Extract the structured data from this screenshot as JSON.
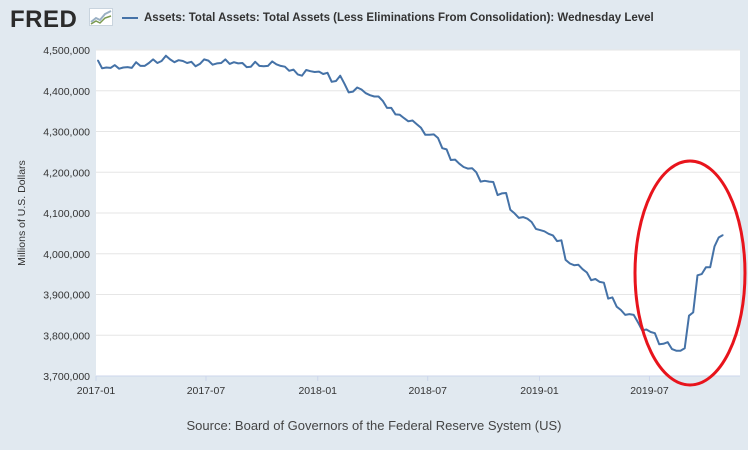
{
  "header": {
    "logo_text": "FRED",
    "legend_label": "Assets: Total Assets: Total Assets (Less Eliminations From Consolidation): Wednesday Level"
  },
  "source": "Source: Board of Governors of the Federal Reserve System (US)",
  "colors": {
    "series": "#4572a7",
    "plot_bg": "#ffffff",
    "page_bg": "#e1e9f0",
    "annotation": "#e8141c",
    "grid": "#e6e6e6"
  },
  "chart_data": {
    "type": "line",
    "ylabel": "Millions of U.S. Dollars",
    "xlabel": "",
    "xlim": [
      "2017-01-01",
      "2019-11-27"
    ],
    "ylim": [
      3700000,
      4500000
    ],
    "yticks": [
      3700000,
      3800000,
      3900000,
      4000000,
      4100000,
      4200000,
      4300000,
      4400000,
      4500000
    ],
    "ytick_labels": [
      "3,700,000",
      "3,800,000",
      "3,900,000",
      "4,000,000",
      "4,100,000",
      "4,200,000",
      "4,300,000",
      "4,400,000",
      "4,500,000"
    ],
    "xticks": [
      "2017-01-01",
      "2017-07-01",
      "2018-01-01",
      "2018-07-01",
      "2019-01-01",
      "2019-07-01"
    ],
    "xtick_labels": [
      "2017-01",
      "2017-07",
      "2018-01",
      "2018-07",
      "2019-01",
      "2019-07"
    ],
    "grid": "horizontal",
    "legend": "top",
    "annotation": "red ellipse around the late-2019 rise",
    "series": [
      {
        "name": "Assets: Total Assets: Total Assets (Less Eliminations From Consolidation): Wednesday Level",
        "points": [
          [
            "2017-01-04",
            4475000
          ],
          [
            "2017-01-11",
            4455000
          ],
          [
            "2017-01-18",
            4457000
          ],
          [
            "2017-01-25",
            4456000
          ],
          [
            "2017-02-01",
            4463000
          ],
          [
            "2017-02-08",
            4454000
          ],
          [
            "2017-02-15",
            4457000
          ],
          [
            "2017-02-22",
            4458000
          ],
          [
            "2017-03-01",
            4456000
          ],
          [
            "2017-03-08",
            4470000
          ],
          [
            "2017-03-15",
            4461000
          ],
          [
            "2017-03-22",
            4461000
          ],
          [
            "2017-03-29",
            4468000
          ],
          [
            "2017-04-05",
            4477000
          ],
          [
            "2017-04-12",
            4468000
          ],
          [
            "2017-04-19",
            4473000
          ],
          [
            "2017-04-26",
            4486000
          ],
          [
            "2017-05-03",
            4477000
          ],
          [
            "2017-05-10",
            4470000
          ],
          [
            "2017-05-17",
            4475000
          ],
          [
            "2017-05-24",
            4473000
          ],
          [
            "2017-05-31",
            4468000
          ],
          [
            "2017-06-07",
            4471000
          ],
          [
            "2017-06-14",
            4460000
          ],
          [
            "2017-06-21",
            4466000
          ],
          [
            "2017-06-28",
            4477000
          ],
          [
            "2017-07-05",
            4474000
          ],
          [
            "2017-07-12",
            4464000
          ],
          [
            "2017-07-19",
            4467000
          ],
          [
            "2017-07-26",
            4468000
          ],
          [
            "2017-08-02",
            4477000
          ],
          [
            "2017-08-09",
            4466000
          ],
          [
            "2017-08-16",
            4470000
          ],
          [
            "2017-08-23",
            4467000
          ],
          [
            "2017-08-30",
            4468000
          ],
          [
            "2017-09-06",
            4458000
          ],
          [
            "2017-09-13",
            4459000
          ],
          [
            "2017-09-20",
            4471000
          ],
          [
            "2017-09-27",
            4461000
          ],
          [
            "2017-10-04",
            4460000
          ],
          [
            "2017-10-11",
            4461000
          ],
          [
            "2017-10-18",
            4472000
          ],
          [
            "2017-10-25",
            4465000
          ],
          [
            "2017-11-01",
            4461000
          ],
          [
            "2017-11-08",
            4459000
          ],
          [
            "2017-11-15",
            4449000
          ],
          [
            "2017-11-22",
            4452000
          ],
          [
            "2017-11-29",
            4440000
          ],
          [
            "2017-12-06",
            4437000
          ],
          [
            "2017-12-13",
            4451000
          ],
          [
            "2017-12-20",
            4448000
          ],
          [
            "2017-12-27",
            4446000
          ],
          [
            "2018-01-03",
            4447000
          ],
          [
            "2018-01-10",
            4441000
          ],
          [
            "2018-01-17",
            4444000
          ],
          [
            "2018-01-24",
            4422000
          ],
          [
            "2018-01-31",
            4424000
          ],
          [
            "2018-02-07",
            4437000
          ],
          [
            "2018-02-14",
            4417000
          ],
          [
            "2018-02-21",
            4396000
          ],
          [
            "2018-02-28",
            4398000
          ],
          [
            "2018-03-07",
            4408000
          ],
          [
            "2018-03-14",
            4403000
          ],
          [
            "2018-03-21",
            4394000
          ],
          [
            "2018-03-28",
            4389000
          ],
          [
            "2018-04-04",
            4386000
          ],
          [
            "2018-04-11",
            4386000
          ],
          [
            "2018-04-18",
            4375000
          ],
          [
            "2018-04-25",
            4358000
          ],
          [
            "2018-05-02",
            4358000
          ],
          [
            "2018-05-09",
            4342000
          ],
          [
            "2018-05-16",
            4341000
          ],
          [
            "2018-05-23",
            4333000
          ],
          [
            "2018-05-30",
            4325000
          ],
          [
            "2018-06-06",
            4327000
          ],
          [
            "2018-06-13",
            4318000
          ],
          [
            "2018-06-20",
            4309000
          ],
          [
            "2018-06-27",
            4292000
          ],
          [
            "2018-07-04",
            4292000
          ],
          [
            "2018-07-11",
            4293000
          ],
          [
            "2018-07-18",
            4284000
          ],
          [
            "2018-07-25",
            4259000
          ],
          [
            "2018-08-01",
            4256000
          ],
          [
            "2018-08-08",
            4230000
          ],
          [
            "2018-08-15",
            4231000
          ],
          [
            "2018-08-22",
            4221000
          ],
          [
            "2018-08-29",
            4213000
          ],
          [
            "2018-09-05",
            4209000
          ],
          [
            "2018-09-12",
            4210000
          ],
          [
            "2018-09-19",
            4200000
          ],
          [
            "2018-09-26",
            4177000
          ],
          [
            "2018-10-03",
            4179000
          ],
          [
            "2018-10-10",
            4177000
          ],
          [
            "2018-10-17",
            4176000
          ],
          [
            "2018-10-24",
            4144000
          ],
          [
            "2018-10-31",
            4148000
          ],
          [
            "2018-11-07",
            4149000
          ],
          [
            "2018-11-14",
            4108000
          ],
          [
            "2018-11-21",
            4099000
          ],
          [
            "2018-11-28",
            4088000
          ],
          [
            "2018-12-05",
            4090000
          ],
          [
            "2018-12-12",
            4086000
          ],
          [
            "2018-12-19",
            4078000
          ],
          [
            "2018-12-26",
            4061000
          ],
          [
            "2019-01-02",
            4058000
          ],
          [
            "2019-01-09",
            4055000
          ],
          [
            "2019-01-16",
            4049000
          ],
          [
            "2019-01-23",
            4045000
          ],
          [
            "2019-01-30",
            4031000
          ],
          [
            "2019-02-06",
            4033000
          ],
          [
            "2019-02-13",
            3985000
          ],
          [
            "2019-02-20",
            3976000
          ],
          [
            "2019-02-27",
            3972000
          ],
          [
            "2019-03-06",
            3973000
          ],
          [
            "2019-03-13",
            3962000
          ],
          [
            "2019-03-20",
            3954000
          ],
          [
            "2019-03-27",
            3935000
          ],
          [
            "2019-04-03",
            3938000
          ],
          [
            "2019-04-10",
            3931000
          ],
          [
            "2019-04-17",
            3929000
          ],
          [
            "2019-04-24",
            3890000
          ],
          [
            "2019-05-01",
            3893000
          ],
          [
            "2019-05-08",
            3870000
          ],
          [
            "2019-05-15",
            3862000
          ],
          [
            "2019-05-22",
            3850000
          ],
          [
            "2019-05-29",
            3852000
          ],
          [
            "2019-06-05",
            3850000
          ],
          [
            "2019-06-12",
            3832000
          ],
          [
            "2019-06-19",
            3812000
          ],
          [
            "2019-06-26",
            3814000
          ],
          [
            "2019-07-03",
            3808000
          ],
          [
            "2019-07-10",
            3805000
          ],
          [
            "2019-07-17",
            3778000
          ],
          [
            "2019-07-24",
            3779000
          ],
          [
            "2019-07-31",
            3783000
          ],
          [
            "2019-08-07",
            3766000
          ],
          [
            "2019-08-14",
            3762000
          ],
          [
            "2019-08-21",
            3762000
          ],
          [
            "2019-08-28",
            3768000
          ],
          [
            "2019-09-04",
            3848000
          ],
          [
            "2019-09-11",
            3856000
          ],
          [
            "2019-09-18",
            3947000
          ],
          [
            "2019-09-25",
            3950000
          ],
          [
            "2019-10-02",
            3967000
          ],
          [
            "2019-10-09",
            3967000
          ],
          [
            "2019-10-16",
            4018000
          ],
          [
            "2019-10-23",
            4040000
          ],
          [
            "2019-10-30",
            4046000
          ]
        ]
      }
    ]
  }
}
